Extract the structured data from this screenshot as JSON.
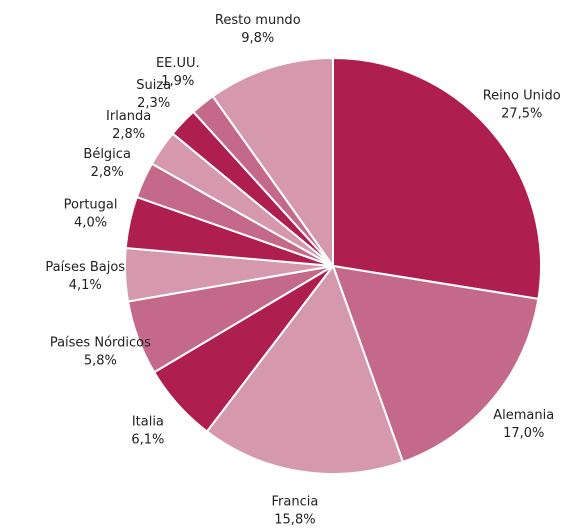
{
  "chart_data": {
    "type": "pie",
    "categories": [
      "Reino Unido",
      "Alemania",
      "Francia",
      "Italia",
      "Países Nórdicos",
      "Países Bajos",
      "Portugal",
      "Bélgica",
      "Irlanda",
      "Suiza",
      "EE.UU.",
      "Resto mundo"
    ],
    "values": [
      27.5,
      17.0,
      15.8,
      6.1,
      5.8,
      4.1,
      4.0,
      2.8,
      2.8,
      2.3,
      1.9,
      9.8
    ],
    "value_labels": [
      "27,5%",
      "17,0%",
      "15,8%",
      "6,1%",
      "5,8%",
      "4,1%",
      "4,0%",
      "2,8%",
      "2,8%",
      "2,3%",
      "1,9%",
      "9,8%"
    ],
    "colors": [
      "#ae1e4e",
      "#c4698a",
      "#d598ad",
      "#ae1e4e",
      "#c4698a",
      "#d598ad",
      "#ae1e4e",
      "#c4698a",
      "#d598ad",
      "#ae1e4e",
      "#c4698a",
      "#d598ad"
    ]
  }
}
